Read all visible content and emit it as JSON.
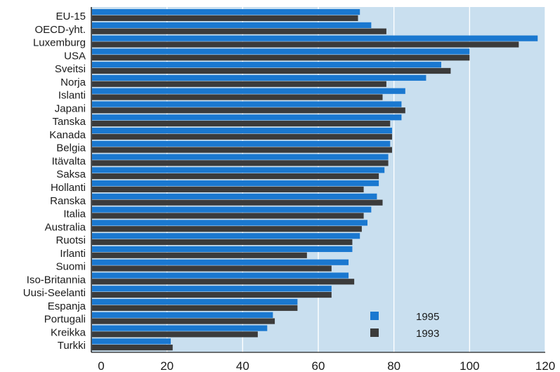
{
  "chart_data": {
    "type": "bar",
    "orientation": "horizontal",
    "title": "",
    "xlabel": "",
    "ylabel": "",
    "xlim": [
      0,
      120
    ],
    "xticks": [
      0,
      20,
      40,
      60,
      80,
      100,
      120
    ],
    "grid": true,
    "legend_position": "lower-right",
    "categories": [
      "EU-15",
      "OECD-yht.",
      "Luxemburg",
      "USA",
      "Sveitsi",
      "Norja",
      "Islanti",
      "Japani",
      "Tanska",
      "Kanada",
      "Belgia",
      "Itävalta",
      "Saksa",
      "Hollanti",
      "Ranska",
      "Italia",
      "Australia",
      "Ruotsi",
      "Irlanti",
      "Suomi",
      "Iso-Britannia",
      "Uusi-Seelanti",
      "Espanja",
      "Portugali",
      "Kreikka",
      "Turkki"
    ],
    "series": [
      {
        "name": "1995",
        "color": "#1a78d0",
        "values": [
          71,
          74,
          118,
          100,
          92.5,
          88.5,
          83,
          82,
          82,
          79.5,
          79,
          78.5,
          77.5,
          76,
          75.5,
          74,
          73,
          71,
          69,
          68,
          68,
          63.5,
          54.5,
          48,
          46.5,
          21
        ]
      },
      {
        "name": "1993",
        "color": "#3b3b3b",
        "values": [
          70.5,
          78,
          113,
          100,
          95,
          78,
          77,
          83,
          79,
          79.5,
          79.5,
          78.5,
          76,
          72,
          77,
          72,
          71.5,
          69,
          57,
          63.5,
          69.5,
          63.5,
          54.5,
          48.5,
          44,
          21.5
        ]
      }
    ],
    "colors": {
      "plot_background": "#c9dfef",
      "gridline": "#ffffff"
    }
  }
}
